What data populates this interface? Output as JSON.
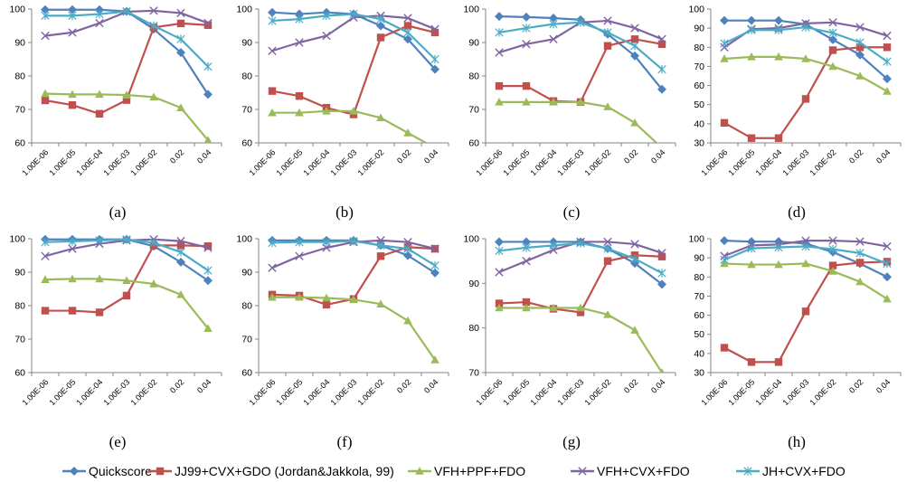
{
  "colors": {
    "quickscore": "#4F81BD",
    "jj99": "#C0504D",
    "vfh_ppf": "#9BBB59",
    "vfh_cvx": "#8064A2",
    "jh_cvx": "#4BACC6"
  },
  "legend": [
    {
      "key": "quickscore",
      "label": "Quickscore",
      "marker": "diamond"
    },
    {
      "key": "jj99",
      "label": "JJ99+CVX+GDO (Jordan&Jakkola, 99)",
      "marker": "square"
    },
    {
      "key": "vfh_ppf",
      "label": "VFH+PPF+FDO",
      "marker": "triangle"
    },
    {
      "key": "vfh_cvx",
      "label": "VFH+CVX+FDO",
      "marker": "x"
    },
    {
      "key": "jh_cvx",
      "label": "JH+CVX+FDO",
      "marker": "star"
    }
  ],
  "chart_data": [
    {
      "type": "line",
      "caption": "(a)",
      "categories": [
        "1.00E-06",
        "1.00E-05",
        "1.00E-04",
        "1.00E-03",
        "1.00E-02",
        "0.02",
        "0.04"
      ],
      "ylim": [
        60,
        100
      ],
      "yticks": [
        60,
        70,
        80,
        90,
        100
      ],
      "grid": false,
      "legend": "bottom",
      "series": [
        {
          "key": "quickscore",
          "values": [
            99.8,
            99.8,
            99.8,
            99.3,
            94.0,
            87.0,
            74.5
          ]
        },
        {
          "key": "jj99",
          "values": [
            72.7,
            71.3,
            68.7,
            72.8,
            94.5,
            95.7,
            95.2
          ]
        },
        {
          "key": "vfh_ppf",
          "values": [
            74.7,
            74.5,
            74.5,
            74.3,
            73.7,
            70.5,
            60.8
          ]
        },
        {
          "key": "vfh_cvx",
          "values": [
            92.0,
            93.0,
            95.8,
            99.2,
            99.5,
            98.8,
            95.8
          ]
        },
        {
          "key": "jh_cvx",
          "values": [
            98.0,
            98.0,
            98.5,
            99.3,
            95.0,
            91.0,
            82.8
          ]
        }
      ]
    },
    {
      "type": "line",
      "caption": "(b)",
      "categories": [
        "1.00E-06",
        "1.00E-05",
        "1.00E-04",
        "1.00E-03",
        "1.00E-02",
        "0.02",
        "0.04"
      ],
      "ylim": [
        60,
        100
      ],
      "yticks": [
        60,
        70,
        80,
        90,
        100
      ],
      "grid": false,
      "legend": "bottom",
      "series": [
        {
          "key": "quickscore",
          "values": [
            99.0,
            98.5,
            99.0,
            98.5,
            95.0,
            91.0,
            82.0
          ]
        },
        {
          "key": "jj99",
          "values": [
            75.5,
            74.0,
            70.5,
            68.5,
            91.5,
            95.0,
            93.0
          ]
        },
        {
          "key": "vfh_ppf",
          "values": [
            69.0,
            69.0,
            69.5,
            69.5,
            67.5,
            63.0,
            58.5
          ]
        },
        {
          "key": "vfh_cvx",
          "values": [
            87.5,
            90.0,
            92.0,
            97.5,
            98.0,
            97.3,
            94.0
          ]
        },
        {
          "key": "jh_cvx",
          "values": [
            96.5,
            97.0,
            98.0,
            98.5,
            97.0,
            93.0,
            85.0
          ]
        }
      ]
    },
    {
      "type": "line",
      "caption": "(c)",
      "categories": [
        "1.00E-06",
        "1.00E-05",
        "1.00E-04",
        "1.00E-03",
        "1.00E-02",
        "0.02",
        "0.04"
      ],
      "ylim": [
        60,
        100
      ],
      "yticks": [
        60,
        70,
        80,
        90,
        100
      ],
      "grid": false,
      "legend": "bottom",
      "series": [
        {
          "key": "quickscore",
          "values": [
            97.8,
            97.6,
            97.3,
            96.8,
            92.5,
            86.0,
            76.0
          ]
        },
        {
          "key": "jj99",
          "values": [
            77.0,
            77.0,
            72.5,
            72.2,
            89.0,
            91.0,
            89.5
          ]
        },
        {
          "key": "vfh_ppf",
          "values": [
            72.2,
            72.2,
            72.2,
            72.2,
            70.8,
            66.0,
            58.5
          ]
        },
        {
          "key": "vfh_cvx",
          "values": [
            87.0,
            89.5,
            91.0,
            96.0,
            96.5,
            94.3,
            91.0
          ]
        },
        {
          "key": "jh_cvx",
          "values": [
            93.0,
            94.3,
            95.5,
            96.0,
            93.0,
            89.0,
            82.0
          ]
        }
      ]
    },
    {
      "type": "line",
      "caption": "(d)",
      "categories": [
        "1.00E-06",
        "1.00E-05",
        "1.00E-04",
        "1.00E-03",
        "1.00E-02",
        "0.02",
        "0.04"
      ],
      "ylim": [
        30,
        100
      ],
      "yticks": [
        30,
        40,
        50,
        60,
        70,
        80,
        90,
        100
      ],
      "grid": false,
      "legend": "bottom",
      "series": [
        {
          "key": "quickscore",
          "values": [
            94.0,
            94.0,
            94.0,
            92.0,
            84.0,
            76.0,
            63.5
          ]
        },
        {
          "key": "jj99",
          "values": [
            40.5,
            32.5,
            32.5,
            53.0,
            78.5,
            80.0,
            80.0
          ]
        },
        {
          "key": "vfh_ppf",
          "values": [
            74.0,
            75.0,
            75.0,
            74.0,
            70.0,
            65.0,
            57.0
          ]
        },
        {
          "key": "vfh_cvx",
          "values": [
            80.0,
            89.5,
            90.0,
            92.5,
            93.0,
            90.5,
            86.0
          ]
        },
        {
          "key": "jh_cvx",
          "values": [
            82.0,
            89.0,
            89.0,
            90.5,
            87.5,
            82.5,
            72.5
          ]
        }
      ]
    },
    {
      "type": "line",
      "caption": "(e)",
      "categories": [
        "1.00E-06",
        "1.00E-05",
        "1.00E-04",
        "1.00E-03",
        "1.00E-02",
        "0.02",
        "0.04"
      ],
      "ylim": [
        60,
        100
      ],
      "yticks": [
        60,
        70,
        80,
        90,
        100
      ],
      "grid": false,
      "legend": "bottom",
      "series": [
        {
          "key": "quickscore",
          "values": [
            99.8,
            99.8,
            99.8,
            99.8,
            97.8,
            93.0,
            87.5
          ]
        },
        {
          "key": "jj99",
          "values": [
            78.5,
            78.5,
            78.0,
            83.0,
            98.0,
            98.0,
            97.8
          ]
        },
        {
          "key": "vfh_ppf",
          "values": [
            87.8,
            88.0,
            88.0,
            87.5,
            86.5,
            83.3,
            73.2
          ]
        },
        {
          "key": "vfh_cvx",
          "values": [
            94.8,
            97.0,
            98.5,
            99.5,
            99.8,
            99.3,
            97.3
          ]
        },
        {
          "key": "jh_cvx",
          "values": [
            99.0,
            99.2,
            99.5,
            99.8,
            98.8,
            96.0,
            90.5
          ]
        }
      ]
    },
    {
      "type": "line",
      "caption": "(f)",
      "categories": [
        "1.00E-06",
        "1.00E-05",
        "1.00E-04",
        "1.00E-03",
        "1.00E-02",
        "0.02",
        "0.04"
      ],
      "ylim": [
        60,
        100
      ],
      "yticks": [
        60,
        70,
        80,
        90,
        100
      ],
      "grid": false,
      "legend": "bottom",
      "series": [
        {
          "key": "quickscore",
          "values": [
            99.5,
            99.5,
            99.5,
            99.5,
            98.0,
            95.0,
            89.8
          ]
        },
        {
          "key": "jj99",
          "values": [
            83.3,
            83.0,
            80.3,
            82.0,
            94.8,
            97.5,
            97.0
          ]
        },
        {
          "key": "vfh_ppf",
          "values": [
            82.5,
            82.5,
            82.3,
            81.8,
            80.5,
            75.5,
            63.8
          ]
        },
        {
          "key": "vfh_cvx",
          "values": [
            91.3,
            94.8,
            97.3,
            99.0,
            99.5,
            99.0,
            97.0
          ]
        },
        {
          "key": "jh_cvx",
          "values": [
            98.8,
            99.0,
            99.0,
            99.3,
            98.0,
            97.0,
            92.0
          ]
        }
      ]
    },
    {
      "type": "line",
      "caption": "(g)",
      "categories": [
        "1.00E-06",
        "1.00E-05",
        "1.00E-04",
        "1.00E-03",
        "1.00E-02",
        "0.02",
        "0.04"
      ],
      "ylim": [
        70,
        100
      ],
      "yticks": [
        70,
        80,
        90,
        100
      ],
      "grid": false,
      "legend": "bottom",
      "series": [
        {
          "key": "quickscore",
          "values": [
            99.3,
            99.3,
            99.3,
            99.3,
            97.8,
            94.5,
            89.8
          ]
        },
        {
          "key": "jj99",
          "values": [
            85.5,
            85.8,
            84.3,
            83.5,
            95.0,
            96.3,
            96.0
          ]
        },
        {
          "key": "vfh_ppf",
          "values": [
            84.5,
            84.5,
            84.5,
            84.5,
            83.0,
            79.5,
            70.0
          ]
        },
        {
          "key": "vfh_cvx",
          "values": [
            92.5,
            95.0,
            97.5,
            99.3,
            99.3,
            98.8,
            96.8
          ]
        },
        {
          "key": "jh_cvx",
          "values": [
            97.3,
            98.0,
            98.5,
            99.0,
            97.8,
            95.5,
            92.3
          ]
        }
      ]
    },
    {
      "type": "line",
      "caption": "(h)",
      "categories": [
        "1.00E-06",
        "1.00E-05",
        "1.00E-04",
        "1.00E-03",
        "1.00E-02",
        "0.02",
        "0.04"
      ],
      "ylim": [
        30,
        100
      ],
      "yticks": [
        30,
        40,
        50,
        60,
        70,
        80,
        90,
        100
      ],
      "grid": false,
      "legend": "bottom",
      "series": [
        {
          "key": "quickscore",
          "values": [
            99.0,
            98.5,
            98.5,
            97.5,
            93.0,
            87.0,
            80.0
          ]
        },
        {
          "key": "jj99",
          "values": [
            43.0,
            35.5,
            35.5,
            62.0,
            86.0,
            87.5,
            88.0
          ]
        },
        {
          "key": "vfh_ppf",
          "values": [
            87.0,
            86.5,
            86.5,
            87.0,
            83.0,
            77.5,
            68.5
          ]
        },
        {
          "key": "vfh_cvx",
          "values": [
            91.0,
            96.5,
            97.0,
            99.0,
            99.0,
            98.5,
            96.0
          ]
        },
        {
          "key": "jh_cvx",
          "values": [
            89.0,
            95.0,
            95.5,
            96.0,
            94.5,
            92.5,
            87.0
          ]
        }
      ]
    }
  ]
}
